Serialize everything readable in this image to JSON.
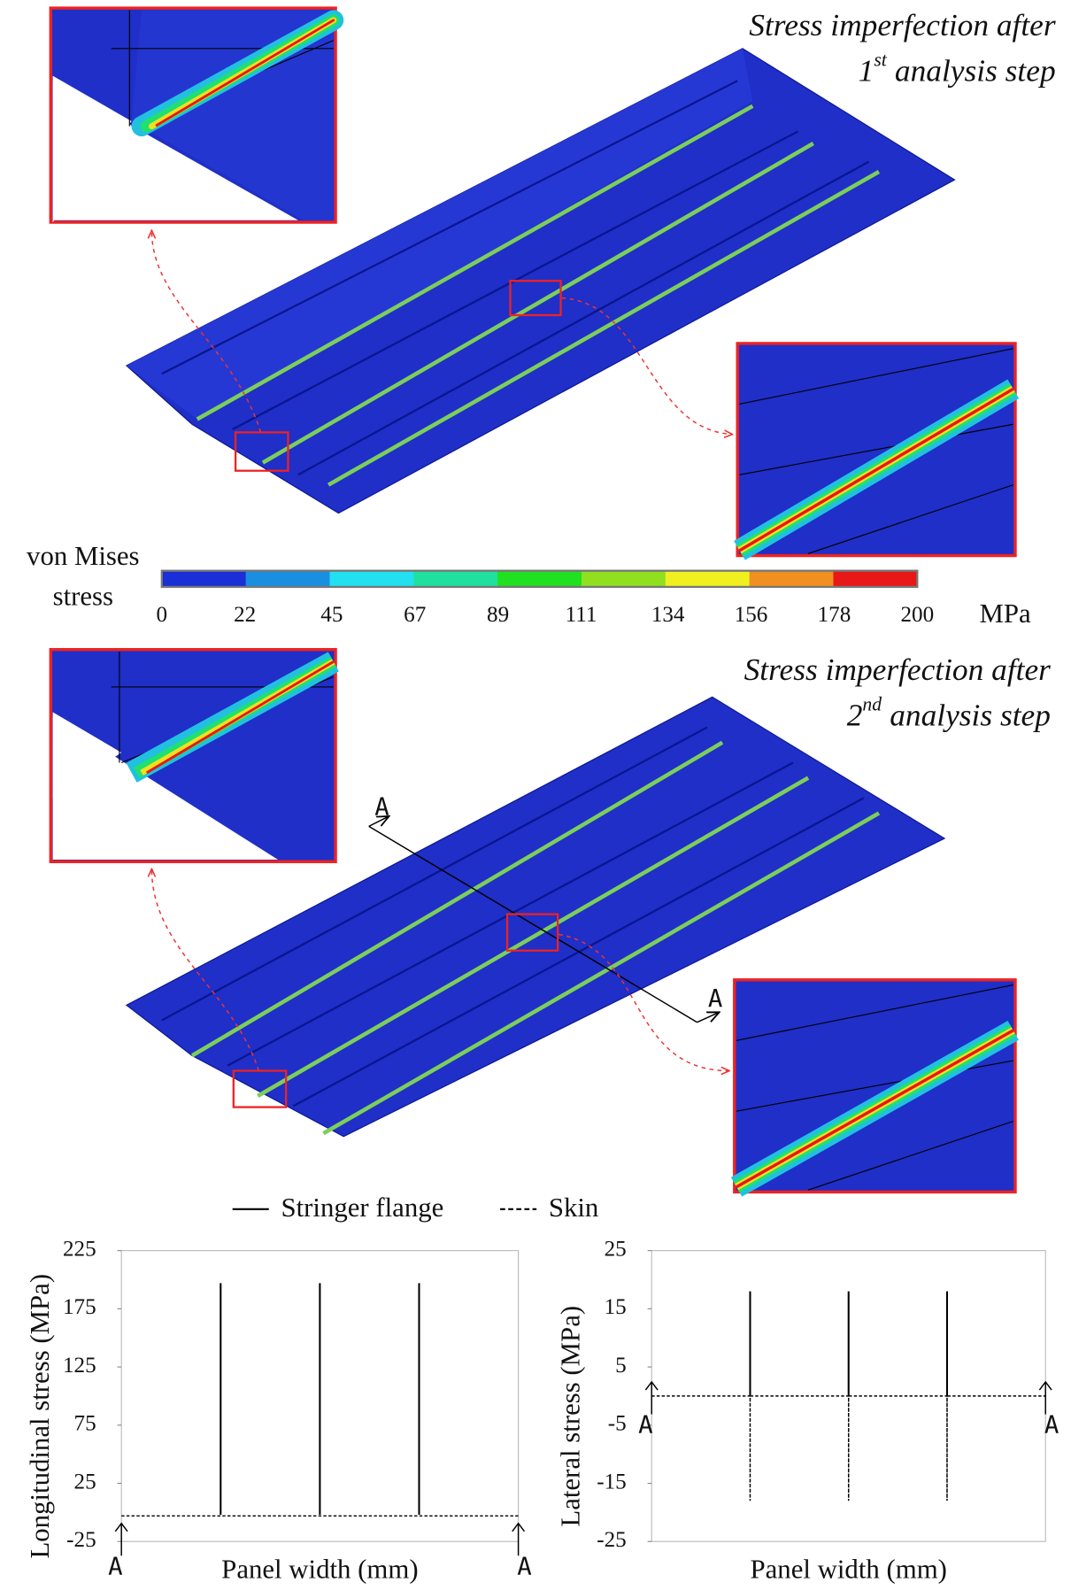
{
  "renders": [
    {
      "title": "Stress imperfection after",
      "step": "1",
      "step_suffix": "st",
      "step_text": "analysis step"
    },
    {
      "title": "Stress imperfection after",
      "step": "2",
      "step_suffix": "nd",
      "step_text": "analysis step",
      "section_labels": [
        "A",
        "A"
      ]
    }
  ],
  "chart_data": [
    {
      "type": "colorbar",
      "title_lines": [
        "von Mises",
        "stress"
      ],
      "unit": "MPa",
      "xlim": [
        0,
        200
      ],
      "xticks": [
        0,
        22,
        45,
        67,
        89,
        111,
        134,
        156,
        178,
        200
      ],
      "colors": [
        "#1a2fd6",
        "#1a8fe0",
        "#22e0f0",
        "#20e0a0",
        "#20e020",
        "#90e020",
        "#f0f020",
        "#f09020",
        "#e81818"
      ]
    },
    {
      "type": "line",
      "ylabel": "Longitudinal stress (MPa)",
      "xlabel": "Panel width (mm)",
      "xlim": [
        0,
        100
      ],
      "ylim": [
        -25,
        225
      ],
      "yticks": [
        -25,
        25,
        75,
        125,
        175,
        225
      ],
      "section_labels": [
        "A",
        "A"
      ],
      "series": [
        {
          "name": "Stringer flange",
          "color": "#000000",
          "dash": false,
          "x": [
            25,
            25,
            null,
            50,
            50,
            null,
            75,
            75
          ],
          "values": [
            -2,
            197,
            null,
            -2,
            197,
            null,
            -2,
            197
          ]
        },
        {
          "name": "Skin",
          "color": "#000000",
          "dash": true,
          "x": [
            0,
            100
          ],
          "values": [
            -3,
            -3
          ]
        }
      ]
    },
    {
      "type": "line",
      "ylabel": "Lateral stress (MPa)",
      "xlabel": "Panel width (mm)",
      "xlim": [
        0,
        100
      ],
      "ylim": [
        -25,
        25
      ],
      "yticks": [
        -25,
        -15,
        -5,
        5,
        15,
        25
      ],
      "section_labels": [
        "A",
        "A"
      ],
      "series": [
        {
          "color": "#000000",
          "dash": false,
          "x": [
            25,
            25,
            null,
            50,
            50,
            null,
            75,
            75
          ],
          "values": [
            0,
            18,
            null,
            0,
            18,
            null,
            0,
            18
          ]
        },
        {
          "color": "#000000",
          "dash": true,
          "x": [
            0,
            25,
            25,
            25,
            50,
            50,
            50,
            75,
            75,
            75,
            100
          ],
          "values": [
            0,
            0,
            -18,
            0,
            0,
            -18,
            0,
            0,
            -18,
            0,
            0
          ]
        }
      ]
    }
  ]
}
